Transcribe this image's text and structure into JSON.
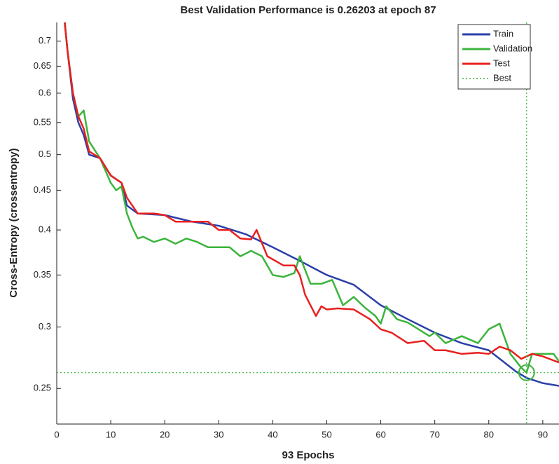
{
  "chart_data": {
    "type": "line",
    "title": "Best Validation Performance is 0.26203 at epoch 87",
    "xlabel": "93 Epochs",
    "ylabel": "Cross-Entropy  (crossentropy)",
    "xlim": [
      0,
      93
    ],
    "ylim": [
      0.225,
      0.74
    ],
    "log_y": true,
    "xticks": [
      0,
      10,
      20,
      30,
      40,
      50,
      60,
      70,
      80,
      90
    ],
    "yticks": [
      0.25,
      0.3,
      0.35,
      0.4,
      0.45,
      0.5,
      0.55,
      0.6,
      0.65,
      0.7
    ],
    "legend": "top-right",
    "series": [
      {
        "name": "Train",
        "color": "#2b3fa8",
        "x": [
          1,
          2,
          3,
          4,
          5,
          6,
          8,
          10,
          12,
          13,
          15,
          20,
          25,
          30,
          35,
          40,
          45,
          50,
          55,
          60,
          65,
          70,
          75,
          80,
          85,
          87,
          90,
          93
        ],
        "values": [
          0.8,
          0.68,
          0.59,
          0.55,
          0.53,
          0.5,
          0.495,
          0.47,
          0.46,
          0.43,
          0.42,
          0.418,
          0.41,
          0.405,
          0.395,
          0.38,
          0.365,
          0.35,
          0.34,
          0.32,
          0.307,
          0.295,
          0.286,
          0.28,
          0.263,
          0.258,
          0.254,
          0.252
        ]
      },
      {
        "name": "Validation",
        "color": "#3cb43c",
        "x": [
          1,
          2,
          3,
          4,
          5,
          6,
          8,
          10,
          11,
          12,
          13,
          14,
          15,
          16,
          18,
          20,
          22,
          24,
          26,
          28,
          30,
          32,
          34,
          36,
          38,
          40,
          42,
          44,
          45,
          47,
          49,
          51,
          53,
          55,
          57,
          59,
          60,
          61,
          63,
          65,
          67,
          69,
          70,
          72,
          75,
          78,
          80,
          82,
          84,
          86,
          87,
          88,
          90,
          92,
          93
        ],
        "values": [
          0.8,
          0.68,
          0.6,
          0.56,
          0.57,
          0.52,
          0.495,
          0.46,
          0.45,
          0.455,
          0.42,
          0.403,
          0.39,
          0.392,
          0.386,
          0.39,
          0.384,
          0.39,
          0.386,
          0.38,
          0.38,
          0.38,
          0.37,
          0.376,
          0.37,
          0.35,
          0.348,
          0.352,
          0.37,
          0.341,
          0.341,
          0.345,
          0.32,
          0.328,
          0.318,
          0.31,
          0.303,
          0.319,
          0.307,
          0.304,
          0.298,
          0.292,
          0.295,
          0.286,
          0.292,
          0.286,
          0.298,
          0.303,
          0.277,
          0.266,
          0.26203,
          0.277,
          0.277,
          0.277,
          0.271
        ]
      },
      {
        "name": "Test",
        "color": "#e8201e",
        "x": [
          1,
          2,
          3,
          4,
          5,
          6,
          8,
          10,
          12,
          13,
          15,
          18,
          20,
          22,
          25,
          28,
          30,
          32,
          34,
          36,
          37,
          39,
          42,
          44,
          45,
          46,
          48,
          49,
          50,
          52,
          55,
          58,
          60,
          62,
          65,
          68,
          70,
          72,
          75,
          78,
          80,
          82,
          84,
          86,
          88,
          90,
          93
        ],
        "values": [
          0.8,
          0.68,
          0.6,
          0.56,
          0.54,
          0.505,
          0.495,
          0.47,
          0.46,
          0.44,
          0.42,
          0.42,
          0.418,
          0.41,
          0.41,
          0.41,
          0.4,
          0.4,
          0.39,
          0.389,
          0.4,
          0.37,
          0.36,
          0.36,
          0.35,
          0.33,
          0.31,
          0.319,
          0.316,
          0.317,
          0.316,
          0.307,
          0.298,
          0.295,
          0.286,
          0.288,
          0.28,
          0.28,
          0.277,
          0.278,
          0.277,
          0.283,
          0.28,
          0.273,
          0.277,
          0.275,
          0.27
        ]
      }
    ],
    "best": {
      "name": "Best",
      "color": "#3cb43c",
      "epoch": 87,
      "value": 0.26203
    }
  }
}
